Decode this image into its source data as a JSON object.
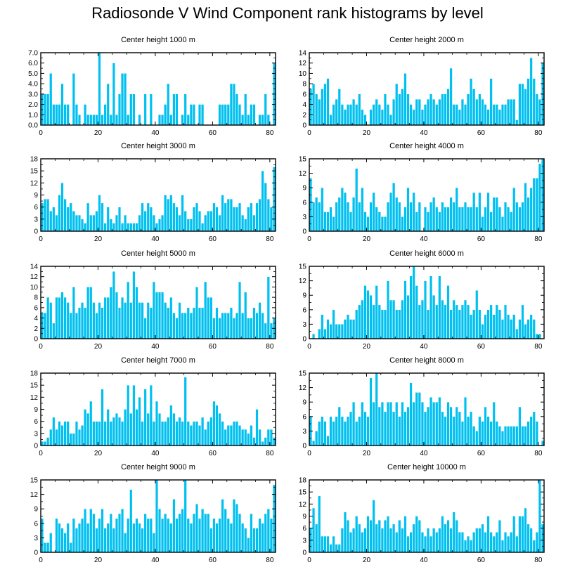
{
  "title": "Radiosonde V Wind Component rank histograms by level",
  "colors": {
    "bar": "#00c0f0",
    "bar_edge": "#ffffff",
    "axis": "#000000"
  },
  "chart_data": [
    {
      "type": "bar",
      "title": "Center height 1000 m",
      "ylim": [
        0,
        7
      ],
      "yticks": [
        0,
        1,
        2,
        3,
        4,
        5,
        6,
        7
      ],
      "ytick_labels": [
        "0.0",
        "1.0",
        "2.0",
        "3.0",
        "4.0",
        "5.0",
        "6.0",
        "7.0"
      ],
      "xlim": [
        0,
        82
      ],
      "xticks": [
        0,
        20,
        40,
        60,
        80
      ],
      "xtick_labels": [
        "0",
        "20",
        "40",
        "60",
        "80"
      ],
      "values": [
        3,
        3,
        3,
        5,
        2,
        2,
        2,
        4,
        2,
        2,
        0,
        5,
        2,
        1,
        0,
        2,
        1,
        1,
        1,
        1,
        7,
        1,
        2,
        4,
        1,
        6,
        1,
        3,
        5,
        5,
        1,
        3,
        3,
        0,
        1,
        0,
        3,
        0,
        3,
        0,
        0,
        1,
        1,
        2,
        4,
        1,
        3,
        3,
        0,
        1,
        3,
        1,
        2,
        2,
        0,
        2,
        2,
        0,
        0,
        0,
        0,
        0,
        2,
        2,
        2,
        2,
        4,
        4,
        3,
        2,
        1,
        3,
        1,
        2,
        2,
        0,
        1,
        1,
        3,
        1,
        0,
        6
      ]
    },
    {
      "type": "bar",
      "title": "Center height 2000 m",
      "ylim": [
        0,
        14
      ],
      "yticks": [
        0,
        2,
        4,
        6,
        8,
        10,
        12,
        14
      ],
      "ytick_labels": [
        "0",
        "2",
        "4",
        "6",
        "8",
        "10",
        "12",
        "14"
      ],
      "xlim": [
        0,
        82
      ],
      "xticks": [
        0,
        20,
        40,
        60,
        80
      ],
      "xtick_labels": [
        "0",
        "20",
        "40",
        "60",
        "80"
      ],
      "values": [
        7,
        8,
        6,
        5,
        7,
        8,
        9,
        2,
        4,
        5,
        7,
        4,
        3,
        4,
        4,
        5,
        4,
        6,
        3,
        2,
        0,
        3,
        4,
        5,
        4,
        3,
        6,
        4,
        2,
        5,
        8,
        6,
        7,
        10,
        6,
        4,
        3,
        5,
        5,
        3,
        4,
        5,
        6,
        5,
        4,
        5,
        6,
        6,
        7,
        11,
        4,
        4,
        3,
        5,
        4,
        6,
        9,
        7,
        5,
        6,
        5,
        4,
        3,
        9,
        4,
        4,
        3,
        4,
        4,
        5,
        5,
        5,
        1,
        8,
        8,
        7,
        9,
        13,
        9,
        6,
        5,
        12
      ]
    },
    {
      "type": "bar",
      "title": "Center height 3000 m",
      "ylim": [
        0,
        18
      ],
      "yticks": [
        0,
        3,
        6,
        9,
        12,
        15,
        18
      ],
      "ytick_labels": [
        "0",
        "3",
        "6",
        "9",
        "12",
        "15",
        "18"
      ],
      "xlim": [
        0,
        82
      ],
      "xticks": [
        0,
        20,
        40,
        60,
        80
      ],
      "xtick_labels": [
        "0",
        "20",
        "40",
        "60",
        "80"
      ],
      "values": [
        7,
        8,
        8,
        5,
        6,
        4,
        9,
        12,
        8,
        6,
        7,
        5,
        4,
        4,
        3,
        2,
        7,
        4,
        4,
        5,
        9,
        7,
        2,
        6,
        3,
        2,
        4,
        6,
        2,
        4,
        2,
        2,
        2,
        2,
        4,
        7,
        5,
        7,
        6,
        4,
        2,
        3,
        4,
        9,
        8,
        9,
        7,
        6,
        4,
        9,
        5,
        3,
        3,
        6,
        7,
        5,
        2,
        4,
        5,
        5,
        7,
        6,
        4,
        9,
        7,
        8,
        8,
        6,
        6,
        7,
        4,
        3,
        6,
        7,
        4,
        7,
        8,
        15,
        12,
        8,
        6,
        16
      ]
    },
    {
      "type": "bar",
      "title": "Center height 4000 m",
      "ylim": [
        0,
        15
      ],
      "yticks": [
        0,
        3,
        6,
        9,
        12,
        15
      ],
      "ytick_labels": [
        "0",
        "3",
        "6",
        "9",
        "12",
        "15"
      ],
      "xlim": [
        0,
        82
      ],
      "xticks": [
        0,
        20,
        40,
        60,
        80
      ],
      "xtick_labels": [
        "0",
        "20",
        "40",
        "60",
        "80"
      ],
      "values": [
        11,
        6,
        7,
        6,
        9,
        4,
        4,
        5,
        3,
        6,
        7,
        9,
        8,
        6,
        4,
        7,
        13,
        6,
        9,
        4,
        3,
        6,
        8,
        5,
        4,
        3,
        3,
        6,
        8,
        10,
        7,
        6,
        3,
        5,
        9,
        6,
        8,
        4,
        6,
        0,
        5,
        4,
        6,
        7,
        5,
        4,
        6,
        5,
        5,
        7,
        6,
        9,
        5,
        5,
        6,
        5,
        5,
        8,
        5,
        8,
        3,
        5,
        8,
        4,
        7,
        7,
        5,
        3,
        6,
        5,
        4,
        9,
        6,
        5,
        6,
        10,
        7,
        9,
        11,
        11,
        14,
        15
      ]
    },
    {
      "type": "bar",
      "title": "Center height 5000 m",
      "ylim": [
        0,
        14
      ],
      "yticks": [
        0,
        2,
        4,
        6,
        8,
        10,
        12,
        14
      ],
      "ytick_labels": [
        "0",
        "2",
        "4",
        "6",
        "8",
        "10",
        "12",
        "14"
      ],
      "xlim": [
        0,
        82
      ],
      "xticks": [
        0,
        20,
        40,
        60,
        80
      ],
      "xtick_labels": [
        "0",
        "20",
        "40",
        "60",
        "80"
      ],
      "values": [
        5,
        5,
        8,
        7,
        3,
        8,
        8,
        9,
        8,
        7,
        5,
        10,
        5,
        6,
        7,
        6,
        10,
        10,
        7,
        5,
        7,
        6,
        8,
        8,
        10,
        13,
        9,
        6,
        8,
        7,
        11,
        7,
        13,
        10,
        7,
        7,
        4,
        7,
        6,
        11,
        9,
        9,
        9,
        7,
        6,
        8,
        5,
        4,
        7,
        5,
        5,
        6,
        5,
        6,
        10,
        6,
        6,
        11,
        8,
        8,
        4,
        6,
        4,
        5,
        5,
        5,
        6,
        4,
        5,
        11,
        5,
        9,
        4,
        4,
        6,
        5,
        7,
        5,
        3,
        12,
        3,
        4
      ]
    },
    {
      "type": "bar",
      "title": "Center height 6000 m",
      "ylim": [
        0,
        15
      ],
      "yticks": [
        0,
        3,
        6,
        9,
        12,
        15
      ],
      "ytick_labels": [
        "0",
        "3",
        "6",
        "9",
        "12",
        "15"
      ],
      "xlim": [
        0,
        82
      ],
      "xticks": [
        0,
        20,
        40,
        60,
        80
      ],
      "xtick_labels": [
        "0",
        "20",
        "40",
        "60",
        "80"
      ],
      "values": [
        0,
        1,
        0,
        2,
        5,
        2,
        4,
        3,
        6,
        3,
        3,
        3,
        4,
        5,
        4,
        4,
        6,
        7,
        8,
        11,
        10,
        9,
        7,
        11,
        7,
        6,
        6,
        12,
        8,
        8,
        6,
        6,
        8,
        12,
        9,
        13,
        15,
        11,
        7,
        8,
        12,
        6,
        13,
        9,
        7,
        13,
        8,
        7,
        11,
        6,
        8,
        7,
        6,
        7,
        8,
        7,
        5,
        6,
        10,
        6,
        3,
        5,
        6,
        7,
        5,
        7,
        6,
        4,
        7,
        5,
        4,
        5,
        2,
        4,
        7,
        3,
        4,
        5,
        4,
        1,
        1,
        0
      ]
    },
    {
      "type": "bar",
      "title": "Center height 7000 m",
      "ylim": [
        0,
        18
      ],
      "yticks": [
        0,
        3,
        6,
        9,
        12,
        15,
        18
      ],
      "ytick_labels": [
        "0",
        "3",
        "6",
        "9",
        "12",
        "15",
        "18"
      ],
      "xlim": [
        0,
        82
      ],
      "xticks": [
        0,
        20,
        40,
        60,
        80
      ],
      "xtick_labels": [
        "0",
        "20",
        "40",
        "60",
        "80"
      ],
      "values": [
        1,
        1,
        2,
        4,
        7,
        4,
        6,
        5,
        6,
        6,
        3,
        3,
        6,
        4,
        5,
        9,
        8,
        11,
        6,
        6,
        6,
        14,
        6,
        9,
        6,
        7,
        8,
        7,
        6,
        9,
        15,
        8,
        15,
        9,
        12,
        6,
        14,
        8,
        15,
        6,
        11,
        8,
        6,
        6,
        7,
        10,
        8,
        6,
        7,
        6,
        17,
        6,
        5,
        6,
        6,
        5,
        7,
        4,
        6,
        7,
        11,
        10,
        8,
        6,
        4,
        5,
        5,
        6,
        6,
        5,
        4,
        4,
        3,
        5,
        2,
        9,
        4,
        1,
        2,
        4,
        4,
        2
      ]
    },
    {
      "type": "bar",
      "title": "Center height 8000 m",
      "ylim": [
        0,
        15
      ],
      "yticks": [
        0,
        3,
        6,
        9,
        12,
        15
      ],
      "ytick_labels": [
        "0",
        "3",
        "6",
        "9",
        "12",
        "15"
      ],
      "xlim": [
        0,
        82
      ],
      "xticks": [
        0,
        20,
        40,
        60,
        80
      ],
      "xtick_labels": [
        "0",
        "20",
        "40",
        "60",
        "80"
      ],
      "values": [
        6,
        1,
        3,
        5,
        6,
        5,
        2,
        6,
        5,
        6,
        8,
        6,
        5,
        6,
        7,
        9,
        5,
        6,
        9,
        7,
        6,
        14,
        9,
        15,
        8,
        9,
        7,
        9,
        9,
        7,
        9,
        6,
        9,
        7,
        8,
        13,
        9,
        11,
        11,
        9,
        7,
        8,
        10,
        9,
        9,
        10,
        7,
        6,
        9,
        8,
        6,
        8,
        7,
        5,
        10,
        6,
        7,
        4,
        3,
        6,
        5,
        8,
        6,
        5,
        9,
        5,
        4,
        3,
        4,
        4,
        4,
        4,
        4,
        8,
        4,
        4,
        5,
        6,
        7,
        5,
        0,
        1
      ]
    },
    {
      "type": "bar",
      "title": "Center height 9000 m",
      "ylim": [
        0,
        15
      ],
      "yticks": [
        0,
        3,
        6,
        9,
        12,
        15
      ],
      "ytick_labels": [
        "0",
        "3",
        "6",
        "9",
        "12",
        "15"
      ],
      "xlim": [
        0,
        82
      ],
      "xticks": [
        0,
        20,
        40,
        60,
        80
      ],
      "xtick_labels": [
        "0",
        "20",
        "40",
        "60",
        "80"
      ],
      "values": [
        7,
        2,
        2,
        4,
        0,
        7,
        6,
        5,
        4,
        6,
        2,
        7,
        5,
        6,
        7,
        9,
        6,
        9,
        8,
        5,
        7,
        9,
        5,
        6,
        8,
        5,
        7,
        8,
        9,
        4,
        7,
        13,
        6,
        7,
        6,
        5,
        8,
        7,
        7,
        4,
        15,
        9,
        7,
        8,
        7,
        6,
        11,
        7,
        8,
        9,
        15,
        7,
        6,
        8,
        10,
        7,
        9,
        8,
        8,
        5,
        7,
        6,
        7,
        11,
        9,
        7,
        6,
        11,
        10,
        8,
        6,
        5,
        3,
        8,
        5,
        5,
        7,
        6,
        8,
        9,
        7,
        14
      ]
    },
    {
      "type": "bar",
      "title": "Center height 10000 m",
      "ylim": [
        0,
        18
      ],
      "yticks": [
        0,
        3,
        6,
        9,
        12,
        15,
        18
      ],
      "ytick_labels": [
        "0",
        "3",
        "6",
        "9",
        "12",
        "15",
        "18"
      ],
      "xlim": [
        0,
        82
      ],
      "xticks": [
        0,
        20,
        40,
        60,
        80
      ],
      "xtick_labels": [
        "0",
        "20",
        "40",
        "60",
        "80"
      ],
      "values": [
        6,
        11,
        7,
        14,
        4,
        4,
        4,
        2,
        4,
        2,
        2,
        6,
        10,
        8,
        5,
        6,
        9,
        7,
        5,
        6,
        9,
        8,
        13,
        7,
        8,
        6,
        8,
        9,
        6,
        7,
        5,
        8,
        6,
        9,
        4,
        5,
        7,
        9,
        8,
        5,
        4,
        6,
        4,
        6,
        5,
        6,
        9,
        7,
        8,
        6,
        10,
        8,
        5,
        5,
        3,
        4,
        3,
        5,
        6,
        6,
        7,
        5,
        9,
        5,
        4,
        5,
        8,
        3,
        5,
        4,
        5,
        9,
        4,
        9,
        9,
        11,
        7,
        6,
        3,
        5,
        18,
        7
      ]
    }
  ]
}
